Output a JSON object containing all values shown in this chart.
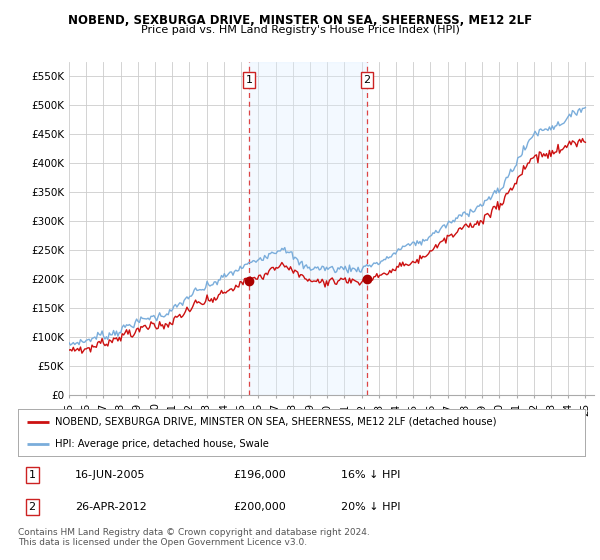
{
  "title": "NOBEND, SEXBURGA DRIVE, MINSTER ON SEA, SHEERNESS, ME12 2LF",
  "subtitle": "Price paid vs. HM Land Registry's House Price Index (HPI)",
  "ylabel_ticks": [
    "£0",
    "£50K",
    "£100K",
    "£150K",
    "£200K",
    "£250K",
    "£300K",
    "£350K",
    "£400K",
    "£450K",
    "£500K",
    "£550K"
  ],
  "ytick_values": [
    0,
    50000,
    100000,
    150000,
    200000,
    250000,
    300000,
    350000,
    400000,
    450000,
    500000,
    550000
  ],
  "ylim": [
    0,
    575000
  ],
  "xlim_start": 1995.0,
  "xlim_end": 2025.5,
  "x_ticks": [
    1995,
    1996,
    1997,
    1998,
    1999,
    2000,
    2001,
    2002,
    2003,
    2004,
    2005,
    2006,
    2007,
    2008,
    2009,
    2010,
    2011,
    2012,
    2013,
    2014,
    2015,
    2016,
    2017,
    2018,
    2019,
    2020,
    2021,
    2022,
    2023,
    2024,
    2025
  ],
  "hpi_color": "#7aaddb",
  "price_color": "#cc1111",
  "sale1_x": 2005.46,
  "sale1_y": 196000,
  "sale2_x": 2012.32,
  "sale2_y": 200000,
  "vline_color": "#dd4444",
  "marker_color": "#aa0000",
  "shade_color": "#ddeeff",
  "legend_house_label": "NOBEND, SEXBURGA DRIVE, MINSTER ON SEA, SHEERNESS, ME12 2LF (detached house)",
  "legend_hpi_label": "HPI: Average price, detached house, Swale",
  "annotation1_date": "16-JUN-2005",
  "annotation1_price": "£196,000",
  "annotation1_hpi": "16% ↓ HPI",
  "annotation2_date": "26-APR-2012",
  "annotation2_price": "£200,000",
  "annotation2_hpi": "20% ↓ HPI",
  "footer": "Contains HM Land Registry data © Crown copyright and database right 2024.\nThis data is licensed under the Open Government Licence v3.0.",
  "background_color": "#ffffff",
  "grid_color": "#cccccc"
}
